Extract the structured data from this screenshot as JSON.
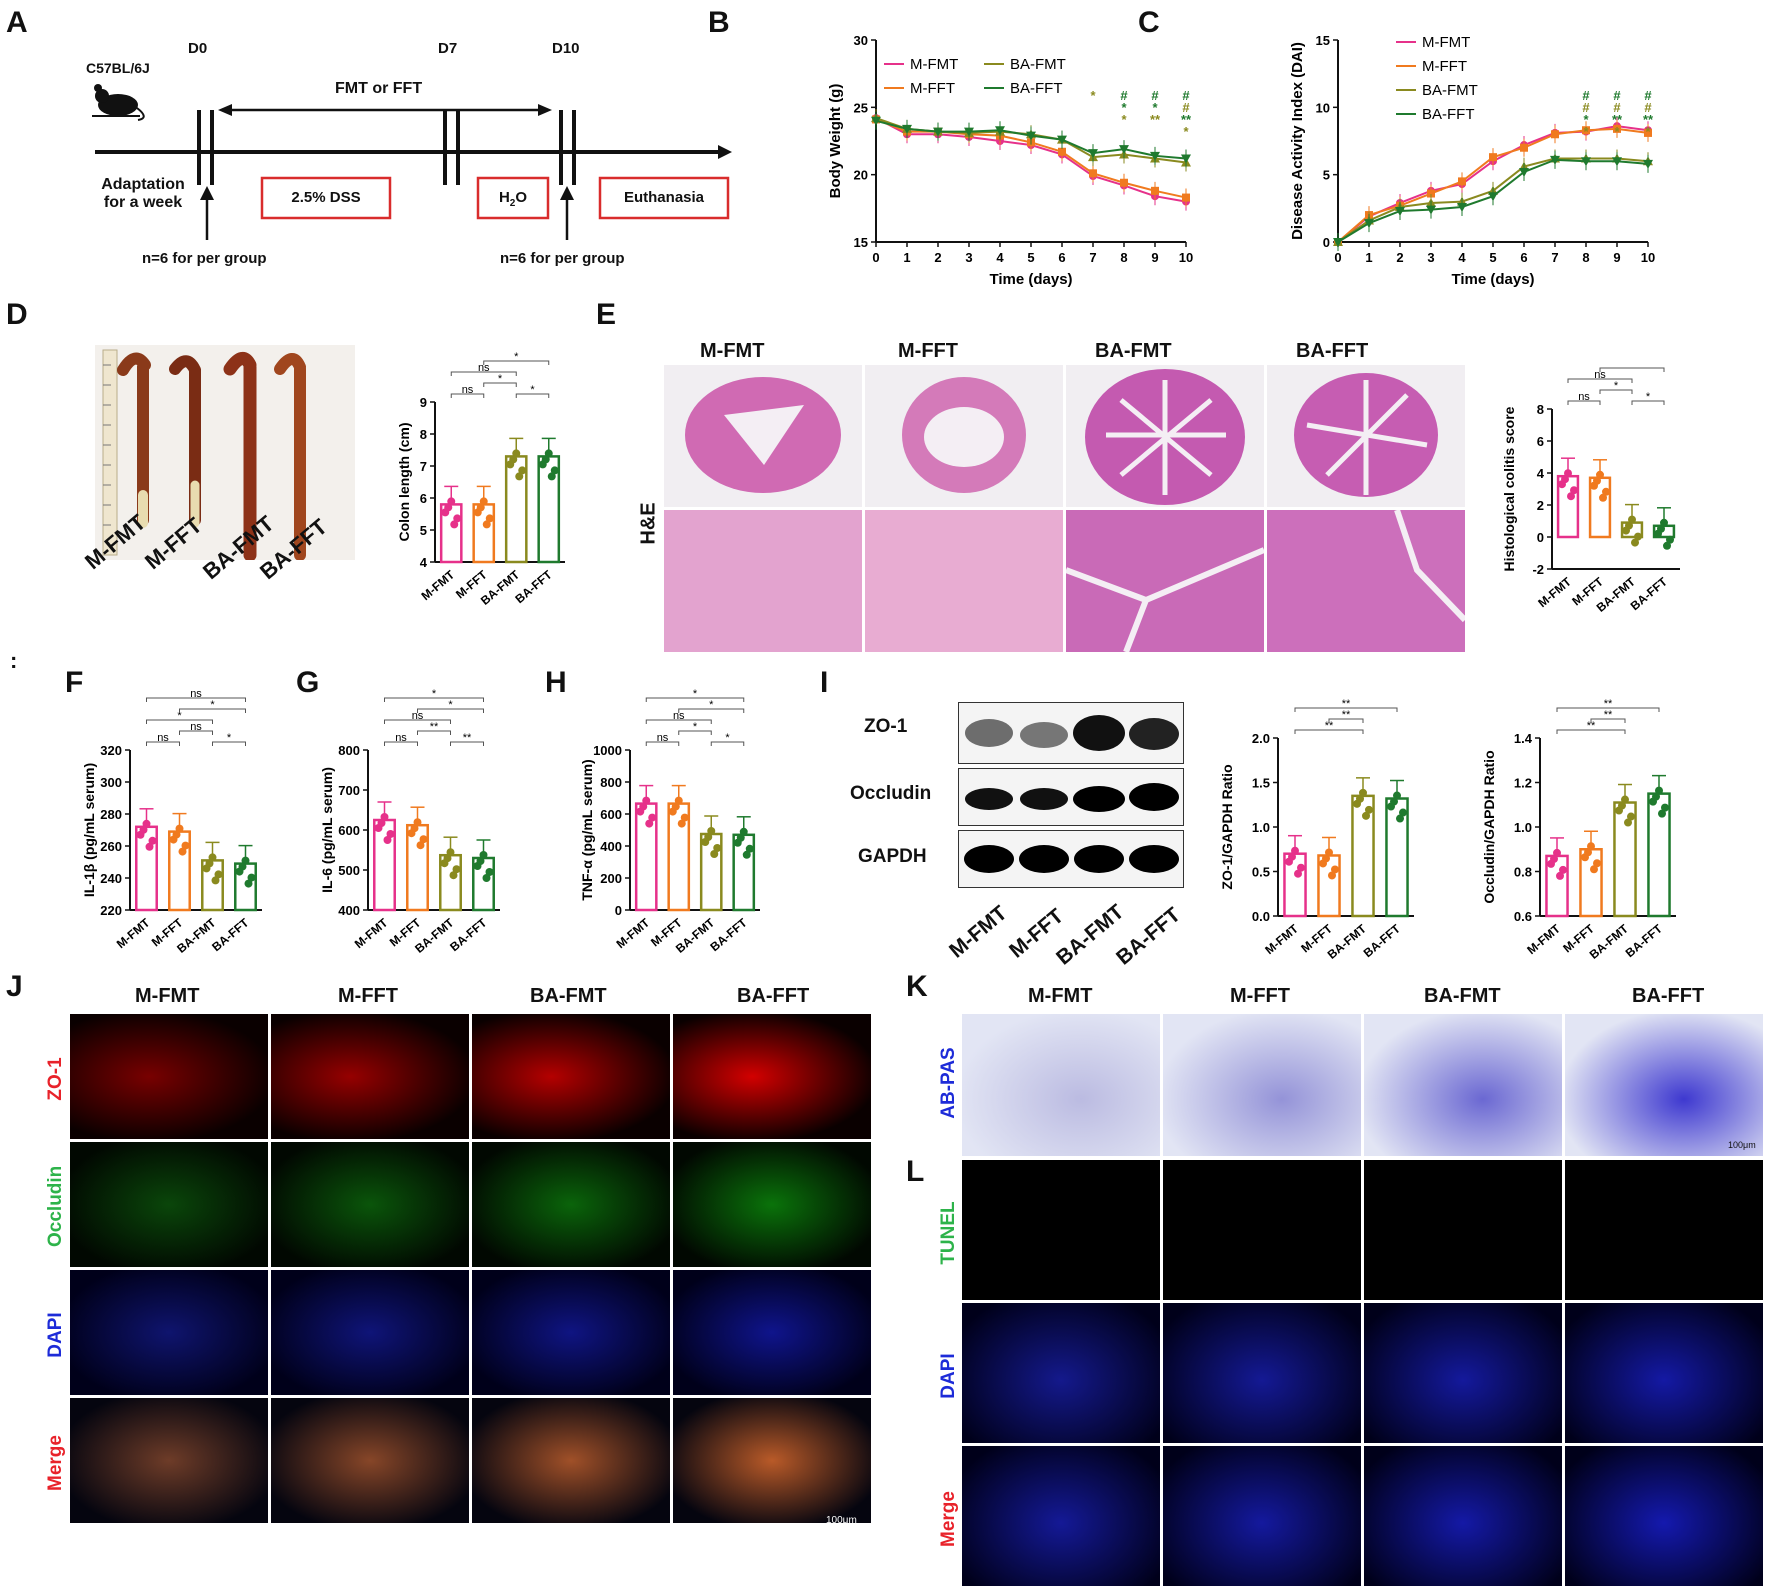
{
  "labels": {
    "A": "A",
    "B": "B",
    "C": "C",
    "D": "D",
    "E": "E",
    "F": "F",
    "G": "G",
    "H": "H",
    "I": "I",
    "J": "J",
    "K": "K",
    "L": "L",
    "stray": ":"
  },
  "groups": [
    "M-FMT",
    "M-FFT",
    "BA-FMT",
    "BA-FFT"
  ],
  "colors": {
    "M-FMT": "#e6318a",
    "M-FFT": "#f07a1f",
    "BA-FMT": "#8a8a1f",
    "BA-FFT": "#1f7a2e"
  },
  "panelA": {
    "strain": "C57BL/6J",
    "d0": "D0",
    "d7": "D7",
    "d10": "D10",
    "treatment": "FMT or FFT",
    "adaptation_line1": "Adaptation",
    "adaptation_line2": "for a week",
    "dss": "2.5% DSS",
    "h2o": "H2O",
    "h2o_main": "H",
    "h2o_sub": "2",
    "h2o_tail": "O",
    "euth": "Euthanasia",
    "n1": "n=6 for per group",
    "n2": "n=6 for per group"
  },
  "chart_data": [
    {
      "id": "B",
      "type": "line",
      "title": "",
      "xlabel": "Time (days)",
      "ylabel": "Body Weight (g)",
      "x": [
        0,
        1,
        2,
        3,
        4,
        5,
        6,
        7,
        8,
        9,
        10
      ],
      "ylim": [
        15,
        30
      ],
      "yticks": [
        15,
        20,
        25,
        30
      ],
      "series": [
        {
          "name": "M-FMT",
          "values": [
            24.2,
            23.0,
            23.0,
            22.8,
            22.5,
            22.2,
            21.5,
            19.9,
            19.2,
            18.4,
            18.0
          ]
        },
        {
          "name": "M-FFT",
          "values": [
            24.1,
            23.2,
            23.2,
            23.0,
            22.9,
            22.4,
            21.7,
            20.1,
            19.4,
            18.8,
            18.3
          ]
        },
        {
          "name": "BA-FMT",
          "values": [
            24.2,
            23.4,
            23.2,
            23.1,
            23.2,
            23.0,
            22.6,
            21.3,
            21.5,
            21.2,
            20.9
          ]
        },
        {
          "name": "BA-FFT",
          "values": [
            24.0,
            23.4,
            23.2,
            23.2,
            23.3,
            22.9,
            22.6,
            21.6,
            21.9,
            21.4,
            21.2
          ]
        }
      ],
      "annotations": [
        {
          "x": 7,
          "text": "*"
        },
        {
          "x": 8,
          "text": "#\n*\n*"
        },
        {
          "x": 9,
          "text": "#\n*\n**"
        },
        {
          "x": 10,
          "text": "#\n#\n**\n*"
        }
      ]
    },
    {
      "id": "C",
      "type": "line",
      "title": "",
      "xlabel": "Time (days)",
      "ylabel": "Disease Activity Index (DAI)",
      "x": [
        0,
        1,
        2,
        3,
        4,
        5,
        6,
        7,
        8,
        9,
        10
      ],
      "ylim": [
        0,
        15
      ],
      "yticks": [
        0,
        5,
        10,
        15
      ],
      "series": [
        {
          "name": "M-FMT",
          "values": [
            0,
            1.9,
            2.9,
            3.8,
            4.3,
            6.0,
            7.2,
            8.1,
            8.2,
            8.6,
            8.3
          ]
        },
        {
          "name": "M-FFT",
          "values": [
            0,
            2.0,
            2.7,
            3.6,
            4.5,
            6.3,
            7.0,
            8.0,
            8.3,
            8.4,
            8.1
          ]
        },
        {
          "name": "BA-FMT",
          "values": [
            0,
            1.6,
            2.6,
            2.9,
            3.0,
            3.8,
            5.6,
            6.2,
            6.2,
            6.2,
            6.0
          ]
        },
        {
          "name": "BA-FFT",
          "values": [
            0,
            1.4,
            2.3,
            2.4,
            2.6,
            3.4,
            5.2,
            6.1,
            6.0,
            6.0,
            5.8
          ]
        }
      ],
      "annotations": [
        {
          "x": 8,
          "text": "#\n#\n*\n*"
        },
        {
          "x": 9,
          "text": "#\n#\n**\n*"
        },
        {
          "x": 10,
          "text": "#\n#\n**\n*"
        }
      ]
    },
    {
      "id": "D",
      "type": "bar",
      "ylabel": "Colon length (cm)",
      "ylim": [
        4,
        9
      ],
      "yticks": [
        4,
        5,
        6,
        7,
        8,
        9
      ],
      "categories": [
        "M-FMT",
        "M-FFT",
        "BA-FMT",
        "BA-FFT"
      ],
      "values": [
        5.8,
        5.8,
        7.3,
        7.3
      ],
      "sig": [
        [
          "ns",
          "*",
          "*"
        ],
        [
          "*",
          "ns",
          "*"
        ]
      ],
      "sig_labels": [
        "ns",
        "*",
        "*",
        "ns",
        "*"
      ]
    },
    {
      "id": "E",
      "type": "bar",
      "ylabel": "Histological colitis score",
      "ylim": [
        -2,
        8
      ],
      "yticks": [
        -2,
        0,
        2,
        4,
        6,
        8
      ],
      "categories": [
        "M-FMT",
        "M-FFT",
        "BA-FMT",
        "BA-FFT"
      ],
      "values": [
        3.8,
        3.7,
        0.9,
        0.7
      ],
      "sig_labels": [
        "ns",
        "*",
        "*",
        "ns",
        "*",
        "*"
      ]
    },
    {
      "id": "F",
      "type": "bar",
      "ylabel": "IL-1β (pg/mL serum)",
      "ylim": [
        220,
        320
      ],
      "yticks": [
        220,
        240,
        260,
        280,
        300,
        320
      ],
      "categories": [
        "M-FMT",
        "M-FFT",
        "BA-FMT",
        "BA-FFT"
      ],
      "values": [
        272,
        269,
        251,
        249
      ],
      "sig_labels": [
        "ns",
        "*",
        "ns",
        "*",
        "*",
        "ns"
      ]
    },
    {
      "id": "G",
      "type": "bar",
      "ylabel": "IL-6 (pg/mL serum)",
      "ylim": [
        400,
        800
      ],
      "yticks": [
        400,
        500,
        600,
        700,
        800
      ],
      "categories": [
        "M-FMT",
        "M-FFT",
        "BA-FMT",
        "BA-FFT"
      ],
      "values": [
        625,
        612,
        537,
        530
      ],
      "sig_labels": [
        "ns",
        "**",
        "**",
        "ns",
        "*",
        "*"
      ]
    },
    {
      "id": "H",
      "type": "bar",
      "ylabel": "TNF-α (pg/mL serum)",
      "ylim": [
        0,
        1000
      ],
      "yticks": [
        0,
        200,
        400,
        600,
        800,
        1000
      ],
      "categories": [
        "M-FMT",
        "M-FFT",
        "BA-FMT",
        "BA-FFT"
      ],
      "values": [
        665,
        665,
        475,
        470
      ],
      "sig_labels": [
        "ns",
        "*",
        "*",
        "ns",
        "*",
        "*"
      ]
    },
    {
      "id": "I1",
      "type": "bar",
      "ylabel": "ZO-1/GAPDH Ratio",
      "ylim": [
        0,
        2.0
      ],
      "yticks": [
        0.0,
        0.5,
        1.0,
        1.5,
        2.0
      ],
      "categories": [
        "M-FMT",
        "M-FFT",
        "BA-FMT",
        "BA-FFT"
      ],
      "values": [
        0.7,
        0.68,
        1.35,
        1.32
      ],
      "sig_labels": [
        "**",
        "**",
        "**"
      ]
    },
    {
      "id": "I2",
      "type": "bar",
      "ylabel": "Occludin/GAPDH Ratio",
      "ylim": [
        0.6,
        1.4
      ],
      "yticks": [
        0.6,
        0.8,
        1.0,
        1.2,
        1.4
      ],
      "categories": [
        "M-FMT",
        "M-FFT",
        "BA-FMT",
        "BA-FFT"
      ],
      "values": [
        0.87,
        0.9,
        1.11,
        1.15
      ],
      "sig_labels": [
        "**",
        "**",
        "**"
      ]
    }
  ],
  "panelE": {
    "stain": "H&E"
  },
  "panelI": {
    "bands": [
      "ZO-1",
      "Occludin",
      "GAPDH"
    ]
  },
  "panelJ": {
    "rows": [
      "ZO-1",
      "Occludin",
      "DAPI",
      "Merge"
    ],
    "row_colors": [
      "#e8222a",
      "#2db34a",
      "#1d2bd8",
      "#e8222a"
    ],
    "scale": "100μm"
  },
  "panelK": {
    "row": "AB-PAS",
    "row_color": "#1d2bd8",
    "scale": "100μm"
  },
  "panelL": {
    "rows": [
      "TUNEL",
      "DAPI",
      "Merge"
    ],
    "row_colors": [
      "#2db34a",
      "#1d2bd8",
      "#e8222a"
    ]
  }
}
